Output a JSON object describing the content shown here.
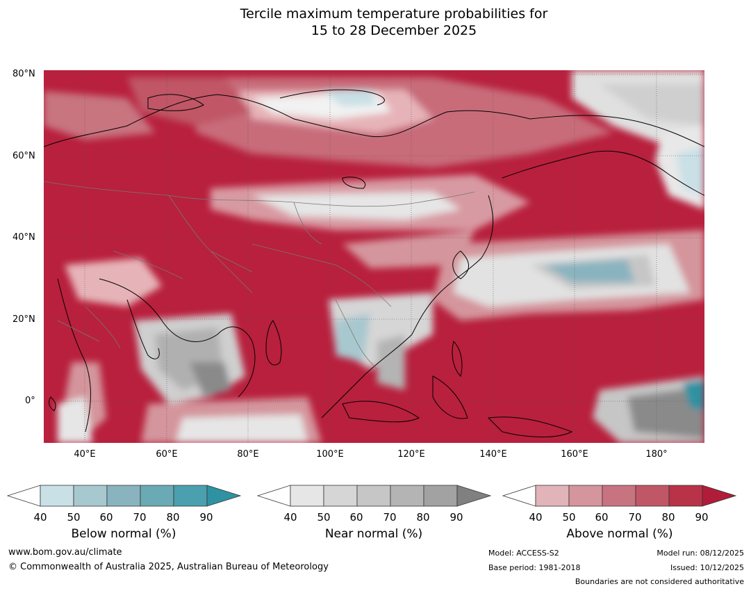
{
  "title": {
    "line1": "Tercile maximum temperature probabilities for",
    "line2": "15 to 28 December 2025"
  },
  "map": {
    "lat_labels": [
      "80°N",
      "60°N",
      "40°N",
      "20°N",
      "0°"
    ],
    "lon_labels": [
      "40°E",
      "60°E",
      "80°E",
      "100°E",
      "120°E",
      "140°E",
      "160°E",
      "180°"
    ]
  },
  "legend": {
    "ticks": [
      "40",
      "50",
      "60",
      "70",
      "80",
      "90"
    ],
    "below": {
      "label": "Below normal (%)",
      "colors": [
        "#ffffff",
        "#c9e0e6",
        "#a8c8cf",
        "#89b4bf",
        "#6aaab5",
        "#4aa0ae",
        "#2e92a3"
      ]
    },
    "near": {
      "label": "Near normal (%)",
      "colors": [
        "#ffffff",
        "#e6e6e6",
        "#d6d6d6",
        "#c6c6c6",
        "#b4b4b4",
        "#a2a2a2",
        "#808080"
      ]
    },
    "above": {
      "label": "Above normal (%)",
      "colors": [
        "#ffffff",
        "#e0b4b8",
        "#d4959c",
        "#c87480",
        "#c05766",
        "#b83348",
        "#b01c39"
      ]
    }
  },
  "footer": {
    "website": "www.bom.gov.au/climate",
    "copyright": "© Commonwealth of Australia 2025, Australian Bureau of Meteorology",
    "model": "Model: ACCESS-S2",
    "base_period": "Base period: 1981-2018",
    "model_run": "Model run: 08/12/2025",
    "issued": "Issued: 10/12/2025",
    "disclaimer": "Boundaries are not considered authoritative"
  }
}
